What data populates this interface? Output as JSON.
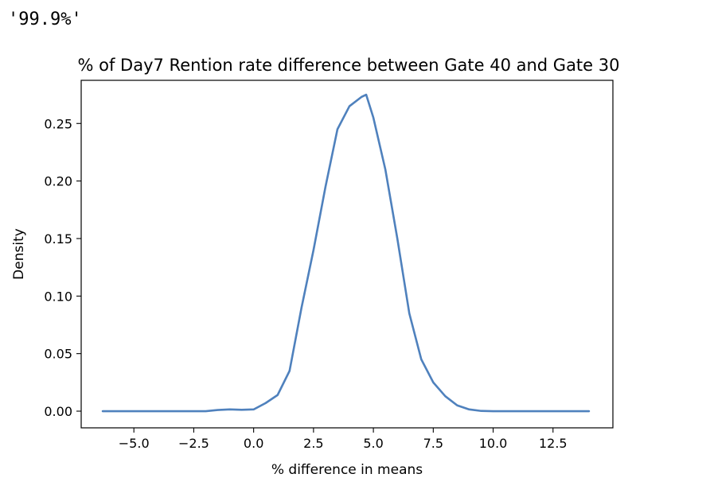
{
  "cell_output": {
    "text": "'99.9%'"
  },
  "chart_data": {
    "type": "line",
    "title": "% of Day7 Rention rate difference between Gate 40 and Gate 30",
    "xlabel": "% difference in means",
    "ylabel": "Density",
    "xlim": [
      -7.2,
      15.0
    ],
    "ylim": [
      -0.0145,
      0.2875
    ],
    "xticks": [
      -5.0,
      -2.5,
      0.0,
      2.5,
      5.0,
      7.5,
      10.0,
      12.5
    ],
    "xtick_labels": [
      "−5.0",
      "−2.5",
      "0.0",
      "2.5",
      "5.0",
      "7.5",
      "10.0",
      "12.5"
    ],
    "yticks": [
      0.0,
      0.05,
      0.1,
      0.15,
      0.2,
      0.25
    ],
    "ytick_labels": [
      "0.00",
      "0.05",
      "0.10",
      "0.15",
      "0.20",
      "0.25"
    ],
    "grid": false,
    "line_color": "#4f81bd",
    "series": [
      {
        "x": [
          -6.3,
          -5.0,
          -3.0,
          -2.0,
          -1.5,
          -1.0,
          -0.5,
          0.0,
          0.5,
          1.0,
          1.5,
          2.0,
          2.5,
          3.0,
          3.5,
          4.0,
          4.5,
          4.7,
          5.0,
          5.5,
          6.0,
          6.5,
          7.0,
          7.5,
          8.0,
          8.5,
          9.0,
          9.5,
          10.0,
          11.0,
          12.0,
          13.0,
          14.0
        ],
        "y": [
          0.0,
          0.0,
          0.0,
          0.0,
          0.001,
          0.0015,
          0.0012,
          0.0015,
          0.007,
          0.014,
          0.035,
          0.09,
          0.14,
          0.195,
          0.245,
          0.265,
          0.273,
          0.275,
          0.255,
          0.21,
          0.15,
          0.085,
          0.045,
          0.025,
          0.013,
          0.005,
          0.0015,
          0.0002,
          0.0,
          0.0,
          0.0,
          0.0,
          0.0
        ]
      }
    ]
  }
}
